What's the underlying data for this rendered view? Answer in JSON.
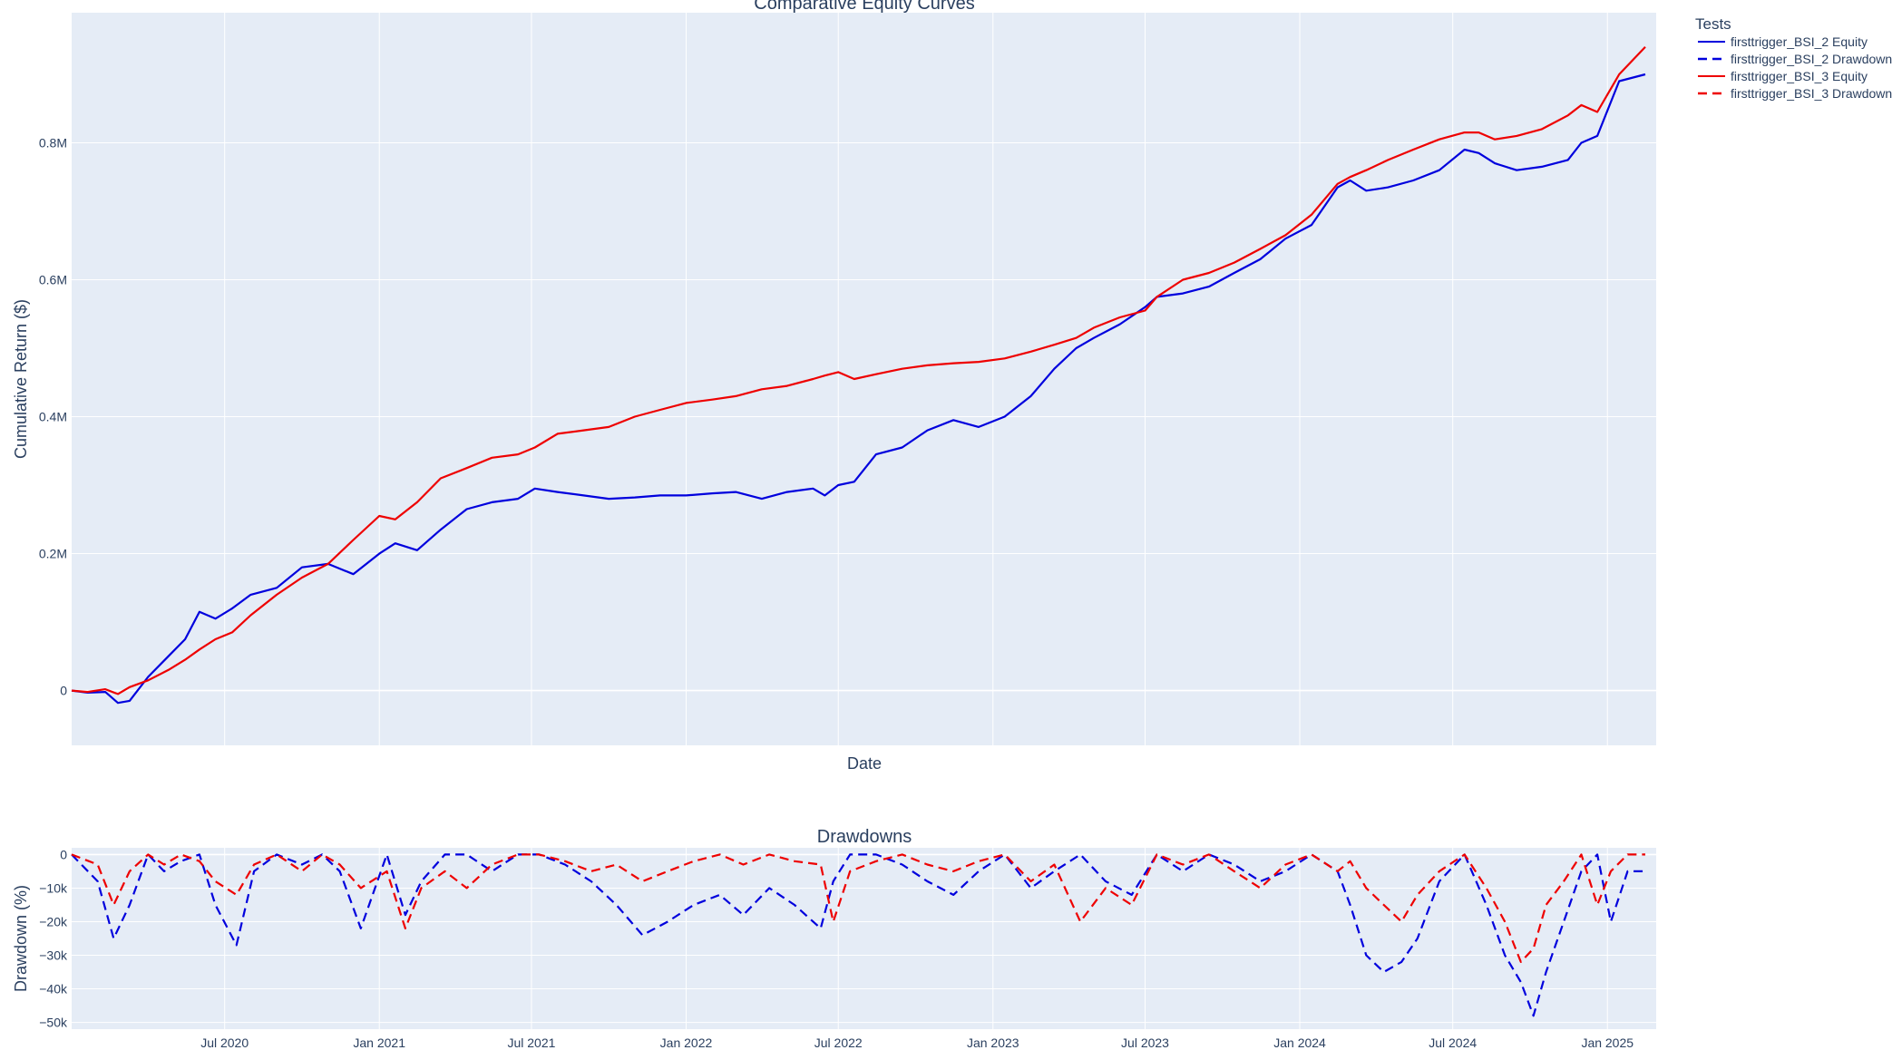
{
  "chart_data": [
    {
      "type": "line",
      "title": "Comparative Equity Curves",
      "xlabel": "Date",
      "ylabel": "Cumulative Return ($)",
      "xlim": [
        "2020-01-01",
        "2025-02-28"
      ],
      "ylim": [
        -80000,
        990000
      ],
      "y_ticks": [
        0,
        200000,
        400000,
        600000,
        800000
      ],
      "y_tick_labels": [
        "0",
        "0.2M",
        "0.4M",
        "0.6M",
        "0.8M"
      ],
      "grid": true,
      "series": [
        {
          "name": "firsttrigger_BSI_2 Equity",
          "color": "#0000dd",
          "dash": "solid",
          "x": [
            "2020-01-01",
            "2020-01-20",
            "2020-02-10",
            "2020-02-25",
            "2020-03-10",
            "2020-04-01",
            "2020-04-25",
            "2020-05-15",
            "2020-06-01",
            "2020-06-20",
            "2020-07-10",
            "2020-08-01",
            "2020-09-01",
            "2020-10-01",
            "2020-11-01",
            "2020-12-01",
            "2021-01-01",
            "2021-01-20",
            "2021-02-15",
            "2021-03-15",
            "2021-04-15",
            "2021-05-15",
            "2021-06-15",
            "2021-07-05",
            "2021-08-01",
            "2021-09-01",
            "2021-10-01",
            "2021-11-01",
            "2021-12-01",
            "2022-01-01",
            "2022-02-01",
            "2022-03-01",
            "2022-04-01",
            "2022-05-01",
            "2022-06-01",
            "2022-06-15",
            "2022-07-01",
            "2022-07-20",
            "2022-08-15",
            "2022-09-15",
            "2022-10-15",
            "2022-11-15",
            "2022-12-15",
            "2023-01-15",
            "2023-02-15",
            "2023-03-15",
            "2023-04-10",
            "2023-05-01",
            "2023-06-01",
            "2023-07-01",
            "2023-07-15",
            "2023-08-15",
            "2023-09-15",
            "2023-10-15",
            "2023-11-15",
            "2023-12-15",
            "2024-01-15",
            "2024-02-15",
            "2024-03-01",
            "2024-03-20",
            "2024-04-15",
            "2024-05-15",
            "2024-06-15",
            "2024-07-15",
            "2024-08-01",
            "2024-08-20",
            "2024-09-15",
            "2024-10-15",
            "2024-11-15",
            "2024-12-01",
            "2024-12-20",
            "2025-01-15",
            "2025-02-15"
          ],
          "y": [
            0,
            -3000,
            -2000,
            -18000,
            -15000,
            20000,
            50000,
            75000,
            115000,
            105000,
            120000,
            140000,
            150000,
            180000,
            185000,
            170000,
            200000,
            215000,
            205000,
            235000,
            265000,
            275000,
            280000,
            295000,
            290000,
            285000,
            280000,
            282000,
            285000,
            285000,
            288000,
            290000,
            280000,
            290000,
            295000,
            285000,
            300000,
            305000,
            345000,
            355000,
            380000,
            395000,
            385000,
            400000,
            430000,
            470000,
            500000,
            515000,
            535000,
            560000,
            575000,
            580000,
            590000,
            610000,
            630000,
            660000,
            680000,
            735000,
            745000,
            730000,
            735000,
            745000,
            760000,
            790000,
            785000,
            770000,
            760000,
            765000,
            775000,
            800000,
            810000,
            890000,
            900000
          ]
        },
        {
          "name": "firsttrigger_BSI_3 Equity",
          "color": "#ee0000",
          "dash": "solid",
          "x": [
            "2020-01-01",
            "2020-01-20",
            "2020-02-10",
            "2020-02-25",
            "2020-03-10",
            "2020-04-01",
            "2020-04-25",
            "2020-05-15",
            "2020-06-01",
            "2020-06-20",
            "2020-07-10",
            "2020-08-01",
            "2020-09-01",
            "2020-10-01",
            "2020-11-01",
            "2020-12-01",
            "2021-01-01",
            "2021-01-20",
            "2021-02-15",
            "2021-03-15",
            "2021-04-15",
            "2021-05-15",
            "2021-06-15",
            "2021-07-05",
            "2021-08-01",
            "2021-09-01",
            "2021-10-01",
            "2021-11-01",
            "2021-12-01",
            "2022-01-01",
            "2022-02-01",
            "2022-03-01",
            "2022-04-01",
            "2022-05-01",
            "2022-06-01",
            "2022-06-15",
            "2022-07-01",
            "2022-07-20",
            "2022-08-15",
            "2022-09-15",
            "2022-10-15",
            "2022-11-15",
            "2022-12-15",
            "2023-01-15",
            "2023-02-15",
            "2023-03-15",
            "2023-04-10",
            "2023-05-01",
            "2023-06-01",
            "2023-07-01",
            "2023-07-15",
            "2023-08-15",
            "2023-09-15",
            "2023-10-15",
            "2023-11-15",
            "2023-12-15",
            "2024-01-15",
            "2024-02-15",
            "2024-03-01",
            "2024-03-20",
            "2024-04-15",
            "2024-05-15",
            "2024-06-15",
            "2024-07-15",
            "2024-08-01",
            "2024-08-20",
            "2024-09-15",
            "2024-10-15",
            "2024-11-15",
            "2024-12-01",
            "2024-12-20",
            "2025-01-15",
            "2025-02-15"
          ],
          "y": [
            0,
            -2000,
            2000,
            -5000,
            5000,
            15000,
            30000,
            45000,
            60000,
            75000,
            85000,
            110000,
            140000,
            165000,
            185000,
            220000,
            255000,
            250000,
            275000,
            310000,
            325000,
            340000,
            345000,
            355000,
            375000,
            380000,
            385000,
            400000,
            410000,
            420000,
            425000,
            430000,
            440000,
            445000,
            455000,
            460000,
            465000,
            455000,
            462000,
            470000,
            475000,
            478000,
            480000,
            485000,
            495000,
            505000,
            515000,
            530000,
            545000,
            555000,
            575000,
            600000,
            610000,
            625000,
            645000,
            665000,
            695000,
            740000,
            750000,
            760000,
            775000,
            790000,
            805000,
            815000,
            815000,
            805000,
            810000,
            820000,
            840000,
            855000,
            845000,
            900000,
            940000
          ]
        },
        {
          "name": "firsttrigger_BSI_2 Drawdown",
          "color": "#0000dd",
          "dash": "dashed",
          "legend_only": true
        },
        {
          "name": "firsttrigger_BSI_3 Drawdown",
          "color": "#ee0000",
          "dash": "dashed",
          "legend_only": true
        }
      ]
    },
    {
      "type": "line",
      "title": "Drawdowns",
      "xlabel": "",
      "ylabel": "Drawdown (%)",
      "xlim": [
        "2020-01-01",
        "2025-02-28"
      ],
      "ylim": [
        -52000,
        2000
      ],
      "y_ticks": [
        0,
        -10000,
        -20000,
        -30000,
        -40000,
        -50000
      ],
      "y_tick_labels": [
        "0",
        "−10k",
        "−20k",
        "−30k",
        "−40k",
        "−50k"
      ],
      "x_ticks": [
        "2020-07-01",
        "2021-01-01",
        "2021-07-01",
        "2022-01-01",
        "2022-07-01",
        "2023-01-01",
        "2023-07-01",
        "2024-01-01",
        "2024-07-01",
        "2025-01-01"
      ],
      "x_tick_labels": [
        "Jul 2020",
        "Jan 2021",
        "Jul 2021",
        "Jan 2022",
        "Jul 2022",
        "Jan 2023",
        "Jul 2023",
        "Jan 2024",
        "Jul 2024",
        "Jan 2025"
      ],
      "grid": true,
      "series": [
        {
          "name": "firsttrigger_BSI_2 Drawdown",
          "color": "#0000dd",
          "dash": "dashed",
          "x": [
            "2020-01-01",
            "2020-02-01",
            "2020-02-20",
            "2020-03-10",
            "2020-04-01",
            "2020-04-20",
            "2020-05-10",
            "2020-06-01",
            "2020-06-20",
            "2020-07-15",
            "2020-08-05",
            "2020-09-01",
            "2020-10-01",
            "2020-10-25",
            "2020-11-15",
            "2020-12-10",
            "2021-01-10",
            "2021-02-01",
            "2021-02-20",
            "2021-03-20",
            "2021-04-15",
            "2021-05-15",
            "2021-06-15",
            "2021-07-10",
            "2021-08-10",
            "2021-09-10",
            "2021-10-10",
            "2021-11-10",
            "2021-12-10",
            "2022-01-10",
            "2022-02-10",
            "2022-03-10",
            "2022-04-10",
            "2022-05-10",
            "2022-06-10",
            "2022-06-25",
            "2022-07-15",
            "2022-08-15",
            "2022-09-15",
            "2022-10-15",
            "2022-11-15",
            "2022-12-15",
            "2023-01-15",
            "2023-02-15",
            "2023-03-15",
            "2023-04-15",
            "2023-05-15",
            "2023-06-15",
            "2023-07-15",
            "2023-08-15",
            "2023-09-15",
            "2023-10-15",
            "2023-11-15",
            "2023-12-15",
            "2024-01-15",
            "2024-02-15",
            "2024-03-01",
            "2024-03-20",
            "2024-04-10",
            "2024-05-01",
            "2024-05-20",
            "2024-06-15",
            "2024-07-15",
            "2024-08-10",
            "2024-09-01",
            "2024-09-20",
            "2024-10-05",
            "2024-10-20",
            "2024-11-10",
            "2024-12-01",
            "2024-12-20",
            "2025-01-05",
            "2025-01-25",
            "2025-02-15"
          ],
          "y": [
            0,
            -8000,
            -25000,
            -15000,
            0,
            -5000,
            -2000,
            0,
            -15000,
            -27000,
            -5000,
            0,
            -3000,
            0,
            -5000,
            -22000,
            0,
            -18000,
            -8000,
            0,
            0,
            -5000,
            0,
            0,
            -3000,
            -8000,
            -15000,
            -24000,
            -20000,
            -15000,
            -12000,
            -18000,
            -10000,
            -15000,
            -22000,
            -8000,
            0,
            0,
            -3000,
            -8000,
            -12000,
            -5000,
            0,
            -10000,
            -5000,
            0,
            -8000,
            -12000,
            0,
            -5000,
            0,
            -3000,
            -8000,
            -5000,
            0,
            -5000,
            -15000,
            -30000,
            -35000,
            -32000,
            -25000,
            -8000,
            0,
            -15000,
            -30000,
            -38000,
            -48000,
            -35000,
            -20000,
            -5000,
            0,
            -20000,
            -5000,
            -5000
          ]
        },
        {
          "name": "firsttrigger_BSI_3 Drawdown",
          "color": "#ee0000",
          "dash": "dashed",
          "x": [
            "2020-01-01",
            "2020-02-01",
            "2020-02-20",
            "2020-03-10",
            "2020-04-01",
            "2020-04-20",
            "2020-05-10",
            "2020-06-01",
            "2020-06-20",
            "2020-07-15",
            "2020-08-05",
            "2020-09-01",
            "2020-10-01",
            "2020-10-25",
            "2020-11-15",
            "2020-12-10",
            "2021-01-10",
            "2021-02-01",
            "2021-02-20",
            "2021-03-20",
            "2021-04-15",
            "2021-05-15",
            "2021-06-15",
            "2021-07-10",
            "2021-08-10",
            "2021-09-10",
            "2021-10-10",
            "2021-11-10",
            "2021-12-10",
            "2022-01-10",
            "2022-02-10",
            "2022-03-10",
            "2022-04-10",
            "2022-05-10",
            "2022-06-10",
            "2022-06-25",
            "2022-07-15",
            "2022-08-15",
            "2022-09-15",
            "2022-10-15",
            "2022-11-15",
            "2022-12-15",
            "2023-01-15",
            "2023-02-15",
            "2023-03-15",
            "2023-04-15",
            "2023-05-15",
            "2023-06-15",
            "2023-07-15",
            "2023-08-15",
            "2023-09-15",
            "2023-10-15",
            "2023-11-15",
            "2023-12-15",
            "2024-01-15",
            "2024-02-15",
            "2024-03-01",
            "2024-03-20",
            "2024-04-10",
            "2024-05-01",
            "2024-05-20",
            "2024-06-15",
            "2024-07-15",
            "2024-08-10",
            "2024-09-01",
            "2024-09-20",
            "2024-10-05",
            "2024-10-20",
            "2024-11-10",
            "2024-12-01",
            "2024-12-20",
            "2025-01-05",
            "2025-01-25",
            "2025-02-15"
          ],
          "y": [
            0,
            -3000,
            -15000,
            -5000,
            0,
            -3000,
            0,
            -2000,
            -8000,
            -12000,
            -3000,
            0,
            -5000,
            0,
            -3000,
            -10000,
            -5000,
            -22000,
            -10000,
            -5000,
            -10000,
            -3000,
            0,
            0,
            -2000,
            -5000,
            -3000,
            -8000,
            -5000,
            -2000,
            0,
            -3000,
            0,
            -2000,
            -3000,
            -20000,
            -5000,
            -2000,
            0,
            -3000,
            -5000,
            -2000,
            0,
            -8000,
            -3000,
            -20000,
            -10000,
            -15000,
            0,
            -3000,
            0,
            -5000,
            -10000,
            -3000,
            0,
            -5000,
            -2000,
            -10000,
            -15000,
            -20000,
            -12000,
            -5000,
            0,
            -10000,
            -20000,
            -32000,
            -28000,
            -15000,
            -8000,
            0,
            -15000,
            -5000,
            0,
            0
          ]
        }
      ]
    }
  ],
  "legend": {
    "title": "Tests",
    "items": [
      {
        "label": "firsttrigger_BSI_2 Equity",
        "color": "#0000dd",
        "dash": "solid"
      },
      {
        "label": "firsttrigger_BSI_2 Drawdown",
        "color": "#0000dd",
        "dash": "dashed"
      },
      {
        "label": "firsttrigger_BSI_3 Equity",
        "color": "#ee0000",
        "dash": "solid"
      },
      {
        "label": "firsttrigger_BSI_3 Drawdown",
        "color": "#ee0000",
        "dash": "dashed"
      }
    ]
  },
  "colors": {
    "plot_background": "#e5ecf6",
    "gridline": "#ffffff"
  }
}
